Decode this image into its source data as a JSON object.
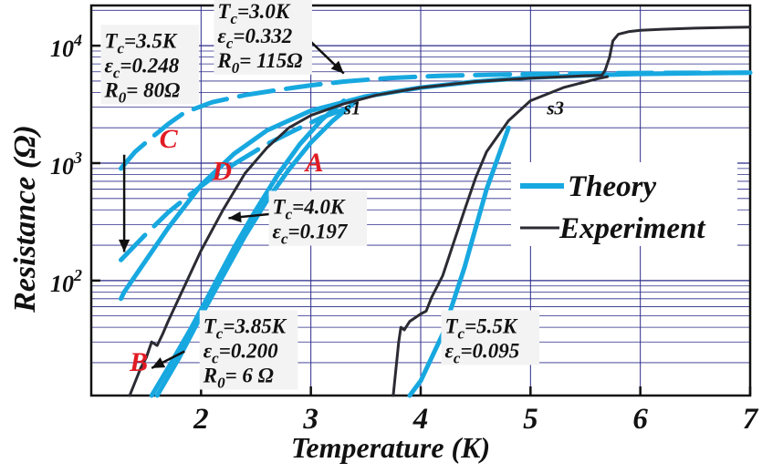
{
  "chart_data": {
    "type": "line",
    "title": "",
    "xlabel": "Temperature (K)",
    "ylabel": "Resistance (Ω)",
    "xlim": [
      1.0,
      7.0
    ],
    "ylim": [
      10.5,
      22000
    ],
    "yscale": "log",
    "grid": true,
    "x_ticks": [
      2,
      3,
      4,
      5,
      6,
      7
    ],
    "y_ticks": [
      {
        "value": 100,
        "label": "10",
        "exp": "2"
      },
      {
        "value": 1000,
        "label": "10",
        "exp": "3"
      },
      {
        "value": 10000,
        "label": "10",
        "exp": "4"
      }
    ],
    "legend": {
      "position": "center-right",
      "entries": [
        {
          "label": "Theory",
          "color": "#18a8e0"
        },
        {
          "label": "Experiment",
          "color": "#2b2b33"
        }
      ]
    },
    "colors": {
      "theory": "#18a8e0",
      "experiment": "#2b2b33",
      "curve_letter": "#e01b24",
      "grid": "#2a2a8a"
    },
    "series": [
      {
        "kind": "theory",
        "dashed": false,
        "x": [
          1.27,
          1.3,
          1.5,
          1.7,
          2.0,
          2.3,
          2.6,
          3.0,
          3.5,
          4.0,
          4.5,
          5.0,
          5.5,
          6.0,
          7.0
        ],
        "y": [
          70,
          80,
          150,
          280,
          650,
          1200,
          1900,
          2800,
          3700,
          4400,
          4950,
          5350,
          5600,
          5750,
          5900
        ]
      },
      {
        "kind": "theory",
        "dashed": true,
        "x": [
          1.27,
          1.5,
          1.7,
          1.9,
          2.1,
          2.35,
          2.6,
          2.85,
          3.1,
          3.4
        ],
        "y": [
          150,
          250,
          380,
          540,
          750,
          1050,
          1450,
          1900,
          2450,
          3100
        ]
      },
      {
        "kind": "theory",
        "dashed": true,
        "x": [
          1.27,
          1.4,
          1.55,
          1.7,
          1.85,
          2.1,
          2.4,
          2.7,
          2.85,
          3.0,
          3.3,
          3.7,
          4.2,
          5.0,
          6.0,
          7.0
        ],
        "y": [
          900,
          1250,
          1650,
          2150,
          2700,
          3300,
          3800,
          4200,
          4400,
          4600,
          4950,
          5300,
          5550,
          5750,
          5850,
          5900
        ]
      },
      {
        "kind": "theory",
        "dashed": false,
        "x": [
          1.55,
          1.7,
          1.9,
          2.1,
          2.3,
          2.5,
          2.7,
          2.9,
          3.1,
          3.3
        ],
        "y": [
          10.5,
          18,
          38,
          85,
          190,
          400,
          800,
          1450,
          2350,
          3400
        ]
      },
      {
        "kind": "theory",
        "dashed": false,
        "x": [
          1.6,
          1.8,
          2.0,
          2.2,
          2.4,
          2.6,
          2.8,
          3.0,
          3.2,
          3.4
        ],
        "y": [
          10.5,
          22,
          50,
          110,
          240,
          480,
          880,
          1500,
          2300,
          3300
        ]
      },
      {
        "kind": "theory",
        "dashed": false,
        "x": [
          3.9,
          4.0,
          4.2,
          4.4,
          4.6,
          4.8
        ],
        "y": [
          10.5,
          14,
          35,
          130,
          600,
          2000
        ]
      },
      {
        "kind": "experiment",
        "x": [
          1.35,
          1.45,
          1.5,
          1.55,
          1.6,
          1.65,
          1.7,
          1.85,
          2.0,
          2.2,
          2.4,
          2.6,
          2.8,
          3.0,
          3.3,
          3.6,
          4.0,
          4.5,
          5.0,
          5.5,
          5.65
        ],
        "y": [
          10.5,
          18,
          22,
          30,
          28,
          35,
          45,
          90,
          180,
          400,
          820,
          1350,
          2000,
          2550,
          3200,
          3800,
          4400,
          4950,
          5300,
          5550,
          5600
        ]
      },
      {
        "kind": "experiment",
        "x": [
          5.65,
          5.68,
          5.72,
          5.75,
          5.8,
          5.9,
          6.0,
          6.2,
          6.5,
          6.8,
          7.0
        ],
        "y": [
          5600,
          6200,
          8000,
          11000,
          12500,
          13200,
          13500,
          13800,
          14100,
          14300,
          14400
        ]
      },
      {
        "kind": "experiment",
        "x": [
          3.75,
          3.8,
          3.82,
          3.85,
          3.9,
          4.0,
          4.05,
          4.1,
          4.2,
          4.3,
          4.4,
          4.5,
          4.6,
          4.8,
          5.0,
          5.3,
          5.6,
          5.7
        ],
        "y": [
          10.5,
          30,
          40,
          38,
          45,
          52,
          55,
          72,
          110,
          210,
          400,
          750,
          1250,
          2300,
          3400,
          4400,
          5200,
          5450
        ]
      }
    ],
    "curve_labels": [
      {
        "text": "A",
        "x": 2.95,
        "y": 850
      },
      {
        "text": "B",
        "x": 1.35,
        "y": 17
      },
      {
        "text": "C",
        "x": 1.62,
        "y": 1350
      },
      {
        "text": "D",
        "x": 2.1,
        "y": 720
      }
    ],
    "sample_labels": [
      {
        "text": "s1",
        "x": 3.3,
        "y": 2600
      },
      {
        "text": "s3",
        "x": 5.15,
        "y": 2600
      }
    ],
    "annotations": [
      {
        "lines": [
          [
            {
              "t": "T",
              "sub": "c",
              "rest": "=3.5K"
            }
          ],
          [
            {
              "t": "ε",
              "sub": "c",
              "rest": "=0.248"
            }
          ],
          [
            {
              "t": "R",
              "sub": "0",
              "rest": "= 80Ω"
            }
          ]
        ],
        "x": 1.12,
        "y": 14000
      },
      {
        "lines": [
          [
            {
              "t": "T",
              "sub": "c",
              "rest": "=3.0K"
            }
          ],
          [
            {
              "t": "ε",
              "sub": "c",
              "rest": "=0.332"
            }
          ],
          [
            {
              "t": "R",
              "sub": "0",
              "rest": "= 115Ω"
            }
          ]
        ],
        "x": 2.15,
        "y": 25000
      },
      {
        "lines": [
          [
            {
              "t": "T",
              "sub": "c",
              "rest": "=4.0K"
            }
          ],
          [
            {
              "t": "ε",
              "sub": "c",
              "rest": "=0.197"
            }
          ]
        ],
        "x": 2.65,
        "y": 540
      },
      {
        "lines": [
          [
            {
              "t": "T",
              "sub": "c",
              "rest": "=3.85K"
            }
          ],
          [
            {
              "t": "ε",
              "sub": "c",
              "rest": "=0.200"
            }
          ],
          [
            {
              "t": "R",
              "sub": "0",
              "rest": "= 6 Ω"
            }
          ]
        ],
        "x": 2.02,
        "y": 52
      },
      {
        "lines": [
          [
            {
              "t": "T",
              "sub": "c",
              "rest": "=5.5K"
            }
          ],
          [
            {
              "t": "ε",
              "sub": "c",
              "rest": "=0.095"
            }
          ]
        ],
        "x": 4.22,
        "y": 52
      }
    ],
    "arrows": [
      {
        "from": [
          3.0,
          10800
        ],
        "to": [
          3.3,
          5800
        ]
      },
      {
        "from": [
          1.3,
          1180
        ],
        "to": [
          1.3,
          175
        ]
      },
      {
        "from": [
          2.65,
          370
        ],
        "to": [
          2.25,
          340
        ]
      },
      {
        "from": [
          1.85,
          25
        ],
        "to": [
          1.55,
          18
        ]
      }
    ]
  }
}
